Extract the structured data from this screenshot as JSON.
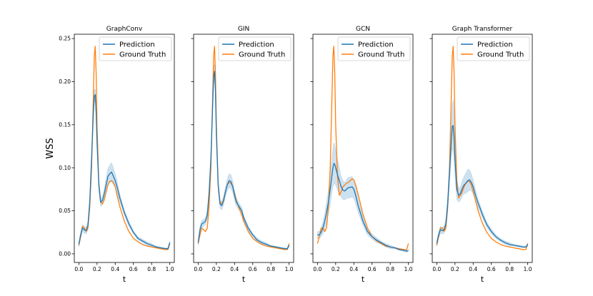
{
  "figure": {
    "ylabel": "WSS",
    "xlabel": "t"
  },
  "colors": {
    "prediction": "#1f77b4",
    "ground_truth": "#ff7f0e",
    "band": "#1f77b4"
  },
  "chart_data": [
    {
      "type": "line",
      "title": "GraphConv",
      "xlabel": "t",
      "ylabel": "WSS",
      "xlim": [
        -0.05,
        1.05
      ],
      "ylim": [
        -0.01,
        0.255
      ],
      "xticks": [
        "0.0",
        "0.2",
        "0.4",
        "0.6",
        "0.8",
        "1.0"
      ],
      "yticks": [
        "0.00",
        "0.05",
        "0.10",
        "0.15",
        "0.20",
        "0.25"
      ],
      "legend": [
        "Prediction",
        "Ground Truth"
      ],
      "legend_loc": "upper-right",
      "x": [
        0.0,
        0.02,
        0.04,
        0.06,
        0.08,
        0.1,
        0.12,
        0.14,
        0.16,
        0.17,
        0.18,
        0.19,
        0.2,
        0.22,
        0.24,
        0.26,
        0.28,
        0.3,
        0.32,
        0.34,
        0.36,
        0.38,
        0.4,
        0.42,
        0.45,
        0.48,
        0.5,
        0.55,
        0.6,
        0.65,
        0.7,
        0.75,
        0.8,
        0.85,
        0.9,
        0.95,
        0.98,
        1.0
      ],
      "series": [
        {
          "name": "Prediction",
          "values": [
            0.011,
            0.022,
            0.03,
            0.028,
            0.027,
            0.033,
            0.06,
            0.11,
            0.165,
            0.183,
            0.185,
            0.165,
            0.13,
            0.08,
            0.06,
            0.062,
            0.07,
            0.08,
            0.09,
            0.093,
            0.095,
            0.09,
            0.085,
            0.078,
            0.065,
            0.055,
            0.048,
            0.035,
            0.025,
            0.018,
            0.015,
            0.012,
            0.01,
            0.008,
            0.007,
            0.006,
            0.006,
            0.013
          ],
          "band": [
            0.003,
            0.004,
            0.004,
            0.004,
            0.004,
            0.005,
            0.008,
            0.01,
            0.01,
            0.008,
            0.006,
            0.01,
            0.01,
            0.008,
            0.005,
            0.005,
            0.006,
            0.008,
            0.009,
            0.01,
            0.011,
            0.01,
            0.008,
            0.007,
            0.005,
            0.004,
            0.003,
            0.003,
            0.002,
            0.002,
            0.002,
            0.002,
            0.002,
            0.001,
            0.001,
            0.001,
            0.001,
            0.002
          ]
        },
        {
          "name": "Ground Truth",
          "values": [
            0.01,
            0.02,
            0.032,
            0.03,
            0.026,
            0.03,
            0.055,
            0.1,
            0.185,
            0.23,
            0.241,
            0.21,
            0.15,
            0.08,
            0.06,
            0.058,
            0.063,
            0.072,
            0.08,
            0.084,
            0.085,
            0.083,
            0.078,
            0.068,
            0.055,
            0.045,
            0.038,
            0.026,
            0.018,
            0.014,
            0.011,
            0.009,
            0.008,
            0.007,
            0.006,
            0.005,
            0.005,
            0.012
          ]
        }
      ]
    },
    {
      "type": "line",
      "title": "GIN",
      "xlabel": "t",
      "ylabel": "",
      "xlim": [
        -0.05,
        1.05
      ],
      "ylim": [
        -0.01,
        0.255
      ],
      "xticks": [
        "0.0",
        "0.2",
        "0.4",
        "0.6",
        "0.8",
        "1.0"
      ],
      "yticks": [],
      "legend": [
        "Prediction",
        "Ground Truth"
      ],
      "legend_loc": "upper-right",
      "x": [
        0.0,
        0.02,
        0.04,
        0.06,
        0.08,
        0.1,
        0.12,
        0.14,
        0.16,
        0.17,
        0.18,
        0.19,
        0.2,
        0.22,
        0.24,
        0.26,
        0.28,
        0.3,
        0.32,
        0.34,
        0.36,
        0.38,
        0.4,
        0.42,
        0.45,
        0.48,
        0.5,
        0.55,
        0.6,
        0.65,
        0.7,
        0.75,
        0.8,
        0.85,
        0.9,
        0.95,
        0.98,
        1.0
      ],
      "series": [
        {
          "name": "Prediction",
          "values": [
            0.013,
            0.028,
            0.035,
            0.036,
            0.038,
            0.045,
            0.07,
            0.11,
            0.175,
            0.205,
            0.212,
            0.19,
            0.14,
            0.08,
            0.058,
            0.056,
            0.062,
            0.072,
            0.08,
            0.085,
            0.084,
            0.078,
            0.068,
            0.06,
            0.055,
            0.05,
            0.042,
            0.03,
            0.022,
            0.016,
            0.013,
            0.011,
            0.009,
            0.008,
            0.007,
            0.006,
            0.006,
            0.01
          ],
          "band": [
            0.003,
            0.004,
            0.004,
            0.004,
            0.004,
            0.005,
            0.007,
            0.009,
            0.01,
            0.009,
            0.008,
            0.01,
            0.01,
            0.007,
            0.005,
            0.005,
            0.005,
            0.006,
            0.007,
            0.008,
            0.008,
            0.007,
            0.006,
            0.005,
            0.004,
            0.004,
            0.003,
            0.003,
            0.002,
            0.002,
            0.002,
            0.002,
            0.001,
            0.001,
            0.001,
            0.001,
            0.001,
            0.002
          ]
        },
        {
          "name": "Ground Truth",
          "values": [
            0.012,
            0.022,
            0.03,
            0.028,
            0.026,
            0.03,
            0.055,
            0.1,
            0.185,
            0.23,
            0.241,
            0.21,
            0.15,
            0.08,
            0.06,
            0.058,
            0.063,
            0.072,
            0.08,
            0.083,
            0.082,
            0.078,
            0.07,
            0.062,
            0.053,
            0.045,
            0.038,
            0.026,
            0.018,
            0.014,
            0.011,
            0.009,
            0.008,
            0.007,
            0.006,
            0.005,
            0.005,
            0.012
          ]
        }
      ]
    },
    {
      "type": "line",
      "title": "GCN",
      "xlabel": "t",
      "ylabel": "",
      "xlim": [
        -0.05,
        1.05
      ],
      "ylim": [
        -0.01,
        0.255
      ],
      "xticks": [
        "0.0",
        "0.2",
        "0.4",
        "0.6",
        "0.8",
        "1.0"
      ],
      "yticks": [],
      "legend": [
        "Prediction",
        "Ground Truth"
      ],
      "legend_loc": "upper-right",
      "x": [
        0.0,
        0.02,
        0.04,
        0.06,
        0.08,
        0.1,
        0.12,
        0.14,
        0.16,
        0.17,
        0.18,
        0.19,
        0.2,
        0.22,
        0.24,
        0.26,
        0.28,
        0.3,
        0.32,
        0.34,
        0.36,
        0.38,
        0.4,
        0.42,
        0.45,
        0.48,
        0.5,
        0.55,
        0.6,
        0.65,
        0.7,
        0.75,
        0.8,
        0.85,
        0.9,
        0.95,
        0.98,
        1.0
      ],
      "series": [
        {
          "name": "Prediction",
          "values": [
            0.022,
            0.022,
            0.025,
            0.03,
            0.038,
            0.048,
            0.06,
            0.075,
            0.092,
            0.1,
            0.105,
            0.104,
            0.1,
            0.092,
            0.085,
            0.078,
            0.074,
            0.073,
            0.075,
            0.077,
            0.077,
            0.078,
            0.075,
            0.068,
            0.055,
            0.045,
            0.038,
            0.026,
            0.02,
            0.016,
            0.013,
            0.01,
            0.008,
            0.007,
            0.005,
            0.004,
            0.003,
            0.004
          ],
          "band": [
            0.004,
            0.004,
            0.005,
            0.007,
            0.009,
            0.012,
            0.014,
            0.018,
            0.02,
            0.022,
            0.024,
            0.023,
            0.02,
            0.018,
            0.015,
            0.012,
            0.011,
            0.01,
            0.011,
            0.012,
            0.012,
            0.012,
            0.011,
            0.01,
            0.008,
            0.006,
            0.005,
            0.004,
            0.003,
            0.003,
            0.002,
            0.002,
            0.002,
            0.001,
            0.001,
            0.001,
            0.001,
            0.001
          ]
        },
        {
          "name": "Ground Truth",
          "values": [
            0.012,
            0.02,
            0.03,
            0.03,
            0.026,
            0.03,
            0.055,
            0.1,
            0.185,
            0.23,
            0.241,
            0.21,
            0.15,
            0.09,
            0.068,
            0.072,
            0.078,
            0.08,
            0.082,
            0.083,
            0.085,
            0.087,
            0.086,
            0.08,
            0.068,
            0.055,
            0.046,
            0.03,
            0.02,
            0.015,
            0.012,
            0.009,
            0.008,
            0.007,
            0.006,
            0.005,
            0.005,
            0.012
          ]
        }
      ]
    },
    {
      "type": "line",
      "title": "Graph Transformer",
      "xlabel": "t",
      "ylabel": "",
      "xlim": [
        -0.05,
        1.05
      ],
      "ylim": [
        -0.01,
        0.255
      ],
      "xticks": [
        "0.0",
        "0.2",
        "0.4",
        "0.6",
        "0.8",
        "1.0"
      ],
      "yticks": [],
      "legend": [
        "Prediction",
        "Ground Truth"
      ],
      "legend_loc": "upper-right",
      "x": [
        0.0,
        0.02,
        0.04,
        0.06,
        0.08,
        0.1,
        0.12,
        0.14,
        0.16,
        0.17,
        0.18,
        0.19,
        0.2,
        0.22,
        0.24,
        0.26,
        0.28,
        0.3,
        0.32,
        0.34,
        0.36,
        0.38,
        0.4,
        0.42,
        0.45,
        0.48,
        0.5,
        0.55,
        0.6,
        0.65,
        0.7,
        0.75,
        0.8,
        0.85,
        0.9,
        0.95,
        0.98,
        1.0
      ],
      "series": [
        {
          "name": "Prediction",
          "values": [
            0.012,
            0.022,
            0.028,
            0.027,
            0.028,
            0.035,
            0.058,
            0.095,
            0.132,
            0.148,
            0.149,
            0.135,
            0.11,
            0.075,
            0.068,
            0.07,
            0.076,
            0.08,
            0.082,
            0.085,
            0.086,
            0.083,
            0.078,
            0.07,
            0.06,
            0.052,
            0.046,
            0.034,
            0.026,
            0.02,
            0.016,
            0.013,
            0.011,
            0.01,
            0.009,
            0.008,
            0.008,
            0.011
          ],
          "band": [
            0.003,
            0.004,
            0.004,
            0.004,
            0.004,
            0.006,
            0.01,
            0.014,
            0.02,
            0.025,
            0.03,
            0.028,
            0.02,
            0.012,
            0.008,
            0.008,
            0.009,
            0.01,
            0.012,
            0.013,
            0.012,
            0.01,
            0.008,
            0.007,
            0.005,
            0.004,
            0.004,
            0.003,
            0.003,
            0.002,
            0.002,
            0.002,
            0.002,
            0.001,
            0.001,
            0.001,
            0.001,
            0.002
          ]
        },
        {
          "name": "Ground Truth",
          "values": [
            0.01,
            0.02,
            0.03,
            0.03,
            0.026,
            0.03,
            0.055,
            0.1,
            0.185,
            0.23,
            0.241,
            0.21,
            0.15,
            0.085,
            0.065,
            0.068,
            0.072,
            0.078,
            0.082,
            0.084,
            0.084,
            0.08,
            0.072,
            0.064,
            0.052,
            0.042,
            0.036,
            0.025,
            0.018,
            0.014,
            0.011,
            0.009,
            0.008,
            0.007,
            0.006,
            0.005,
            0.005,
            0.012
          ]
        }
      ]
    }
  ]
}
